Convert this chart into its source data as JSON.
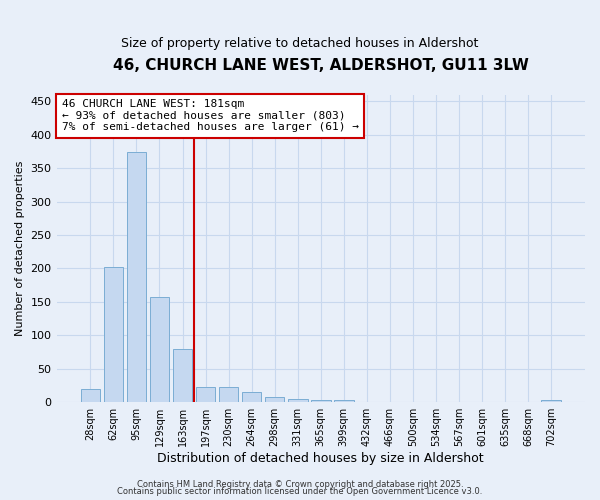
{
  "title": "46, CHURCH LANE WEST, ALDERSHOT, GU11 3LW",
  "subtitle": "Size of property relative to detached houses in Aldershot",
  "xlabel": "Distribution of detached houses by size in Aldershot",
  "ylabel": "Number of detached properties",
  "bar_values": [
    19,
    202,
    374,
    158,
    80,
    23,
    22,
    15,
    8,
    5,
    3,
    3,
    0,
    0,
    0,
    0,
    0,
    0,
    0,
    0,
    3
  ],
  "categories": [
    "28sqm",
    "62sqm",
    "95sqm",
    "129sqm",
    "163sqm",
    "197sqm",
    "230sqm",
    "264sqm",
    "298sqm",
    "331sqm",
    "365sqm",
    "399sqm",
    "432sqm",
    "466sqm",
    "500sqm",
    "534sqm",
    "567sqm",
    "601sqm",
    "635sqm",
    "668sqm",
    "702sqm"
  ],
  "bar_color": "#c5d8f0",
  "bar_edge_color": "#7badd4",
  "vline_color": "#cc0000",
  "vline_x_index": 4.5,
  "annotation_text": "46 CHURCH LANE WEST: 181sqm\n← 93% of detached houses are smaller (803)\n7% of semi-detached houses are larger (61) →",
  "annotation_box_edgecolor": "#cc0000",
  "annotation_box_facecolor": "#ffffff",
  "ylim": [
    0,
    460
  ],
  "yticks": [
    0,
    50,
    100,
    150,
    200,
    250,
    300,
    350,
    400,
    450
  ],
  "grid_color": "#c8d8ee",
  "bg_color": "#e8eff9",
  "plot_bg_color": "#e8eff9",
  "footer1": "Contains HM Land Registry data © Crown copyright and database right 2025.",
  "footer2": "Contains public sector information licensed under the Open Government Licence v3.0.",
  "title_fontsize": 11,
  "subtitle_fontsize": 9,
  "xlabel_fontsize": 9,
  "ylabel_fontsize": 8,
  "annotation_fontsize": 8,
  "footer_fontsize": 6
}
